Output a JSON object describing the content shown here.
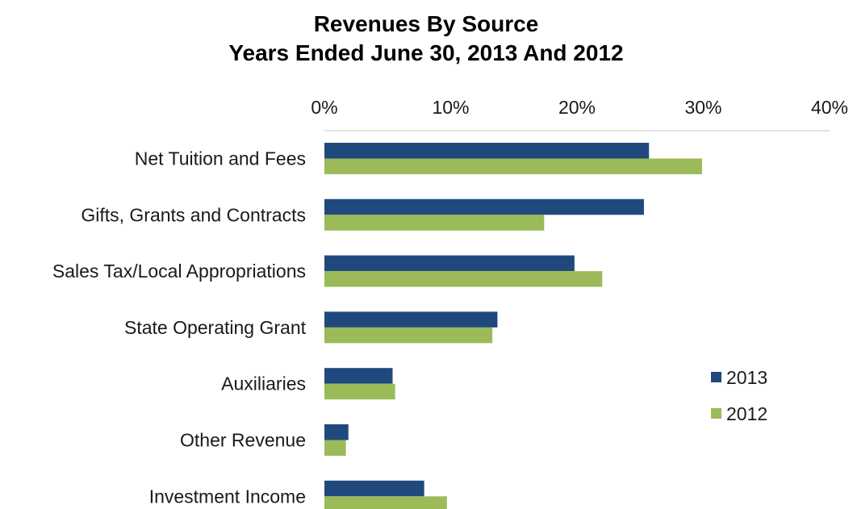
{
  "chart_data": {
    "type": "bar",
    "orientation": "horizontal",
    "title": "Revenues By Source",
    "subtitle": "Years Ended June 30, 2013 And 2012",
    "xlim": [
      0,
      40
    ],
    "x_ticks": [
      "0%",
      "10%",
      "20%",
      "30%",
      "40%"
    ],
    "x_axis_position": "top",
    "grid": false,
    "legend_position": "right",
    "categories": [
      "Net Tuition and Fees",
      "Gifts, Grants and Contracts",
      "Sales Tax/Local Appropriations",
      "State Operating Grant",
      "Auxiliaries",
      "Other Revenue",
      "Investment Income"
    ],
    "series": [
      {
        "name": "2013",
        "color": "#1f497d",
        "values": [
          25.7,
          25.3,
          19.8,
          13.7,
          5.4,
          1.9,
          7.9
        ]
      },
      {
        "name": "2012",
        "color": "#9bbb59",
        "values": [
          29.9,
          17.4,
          22.0,
          13.3,
          5.6,
          1.7,
          9.7
        ]
      }
    ]
  }
}
